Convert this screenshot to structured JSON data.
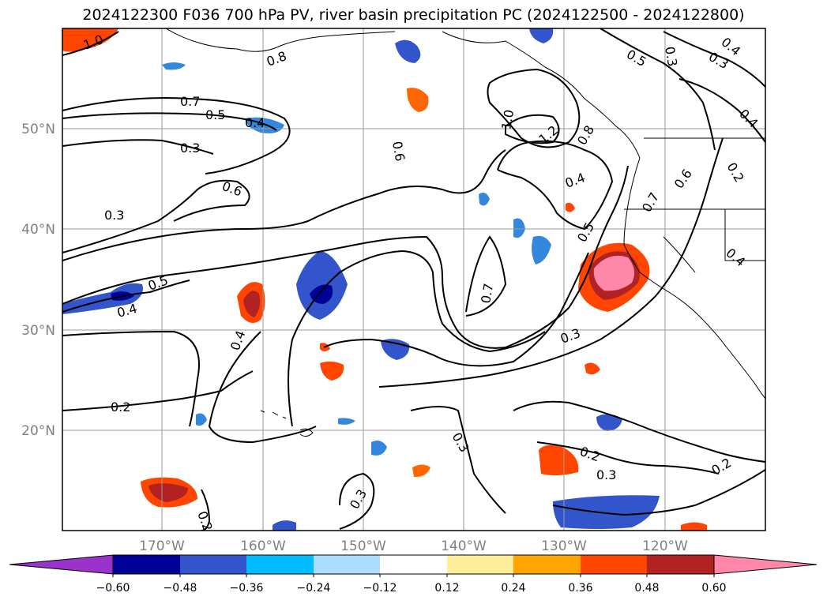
{
  "title": "2024122300 F036 700 hPa PV, river basin precipitation PC (2024122500 - 2024122800)",
  "map": {
    "lon_ticks": [
      "170°W",
      "160°W",
      "150°W",
      "140°W",
      "130°W",
      "120°W"
    ],
    "lat_ticks": [
      "50°N",
      "40°N",
      "30°N",
      "20°N"
    ],
    "grid": true
  },
  "contour_labels": [
    "1.0",
    "0.8",
    "0.7",
    "0.5",
    "0.4",
    "0.3",
    "0.6",
    "0.3",
    "0.6",
    "0.5",
    "0.4",
    "0.4",
    "0.2",
    "1.0",
    "1.2",
    "0.8",
    "0.4",
    "0.5",
    "0.7",
    "0.6",
    "0.7",
    "0.3",
    "0.3",
    "0.2",
    "0.3",
    "0.3",
    "0.2",
    "0.2",
    "0.5",
    "0.3",
    "0.4",
    "0.3",
    "0.4",
    "0.4",
    "0.2"
  ],
  "colorbar": {
    "ticks": [
      "−0.60",
      "−0.48",
      "−0.36",
      "−0.24",
      "−0.12",
      "0.12",
      "0.24",
      "0.36",
      "0.48",
      "0.60"
    ],
    "colors": [
      "#9933cc",
      "#000099",
      "#3355cc",
      "#00bbff",
      "#aaddff",
      "#ffffff",
      "#ffee99",
      "#ffa500",
      "#ff4500",
      "#b22222",
      "#ff88aa"
    ]
  }
}
